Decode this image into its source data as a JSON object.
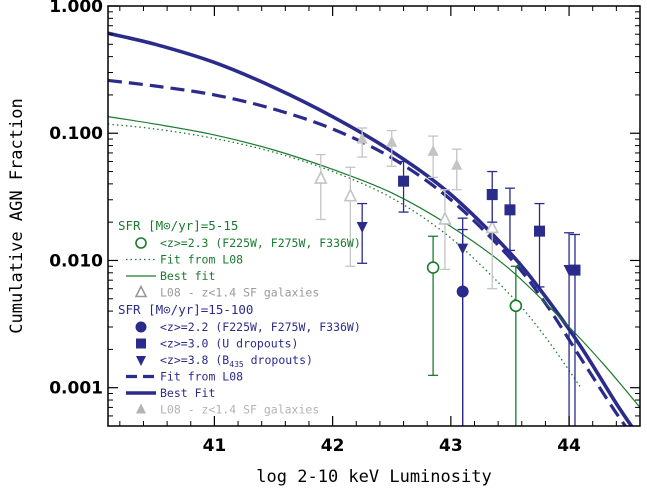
{
  "chart_data": {
    "type": "scatter",
    "xlabel": "log 2-10 keV Luminosity",
    "ylabel": "Cumulative AGN Fraction",
    "xlim": [
      40.1,
      44.6
    ],
    "ylim": [
      0.0005,
      1.0
    ],
    "yscale": "log",
    "x_ticks": [
      41,
      42,
      43,
      44
    ],
    "x_tick_labels": [
      "41",
      "42",
      "43",
      "44"
    ],
    "y_ticks": [
      0.001,
      0.01,
      0.1,
      1.0
    ],
    "y_tick_labels": [
      "0.001",
      "0.010",
      "0.100",
      "1.000"
    ],
    "colors": {
      "green": "#1a7a2e",
      "blue": "#2b2b8c",
      "gray": "#c4c4c4"
    },
    "legend_groups": [
      {
        "header": "SFR [M⊙/yr]=5-15",
        "color": "#1a7a2e",
        "entries": [
          {
            "marker": "open-circle",
            "color": "#1a7a2e",
            "label": "<z>=2.3 (F225W, F275W, F336W)"
          },
          {
            "marker": "dotted-line",
            "color": "#1a7a2e",
            "label": "Fit from L08"
          },
          {
            "marker": "thin-line",
            "color": "#1a7a2e",
            "label": "Best fit"
          },
          {
            "marker": "open-triangle",
            "color": "#9a9a9a",
            "label": "L08 - z<1.4 SF galaxies"
          }
        ]
      },
      {
        "header": "SFR [M⊙/yr]=15-100",
        "color": "#2b2b8c",
        "entries": [
          {
            "marker": "filled-circle",
            "color": "#2b2b8c",
            "label": "<z>=2.2 (F225W, F275W, F336W)"
          },
          {
            "marker": "filled-square",
            "color": "#2b2b8c",
            "label": "<z>=3.0 (U dropouts)"
          },
          {
            "marker": "filled-triangle-down",
            "color": "#2b2b8c",
            "label_pre": "<z>=3.8 (B",
            "label_sub": "435",
            "label_post": " dropouts)"
          },
          {
            "marker": "dashed-line",
            "color": "#2b2b8c",
            "label": "Fit from L08"
          },
          {
            "marker": "thick-line",
            "color": "#2b2b8c",
            "label": "Best Fit"
          },
          {
            "marker": "filled-triangle",
            "color": "#b4b4b4",
            "label": "L08 - z<1.4 SF galaxies"
          }
        ]
      }
    ],
    "series": [
      {
        "name": "<z>=2.3 (F225W, F275W, F336W)",
        "marker": "open-circle",
        "color": "#1a7a2e",
        "points": [
          {
            "x": 42.85,
            "y": 0.0088,
            "ylo": 0.00125,
            "yhi": 0.0155
          },
          {
            "x": 43.55,
            "y": 0.0044,
            "ylo": 0.0003,
            "yhi": 0.009
          }
        ]
      },
      {
        "name": "L08 - z<1.4 SF galaxies (open)",
        "marker": "open-triangle",
        "color": "#c4c4c4",
        "points": [
          {
            "x": 41.9,
            "y": 0.044,
            "ylo": 0.021,
            "yhi": 0.068
          },
          {
            "x": 42.15,
            "y": 0.032,
            "ylo": 0.009,
            "yhi": 0.054
          },
          {
            "x": 42.95,
            "y": 0.021,
            "ylo": 0.0085,
            "yhi": 0.036
          },
          {
            "x": 43.35,
            "y": 0.018,
            "ylo": 0.006,
            "yhi": 0.03
          }
        ]
      },
      {
        "name": "L08 - z<1.4 SF galaxies (filled)",
        "marker": "filled-triangle",
        "color": "#c4c4c4",
        "points": [
          {
            "x": 42.25,
            "y": 0.09,
            "ylo": 0.065,
            "yhi": 0.11
          },
          {
            "x": 42.5,
            "y": 0.085,
            "ylo": 0.055,
            "yhi": 0.105
          },
          {
            "x": 42.85,
            "y": 0.072,
            "ylo": 0.045,
            "yhi": 0.095
          },
          {
            "x": 43.05,
            "y": 0.056,
            "ylo": 0.036,
            "yhi": 0.075
          }
        ]
      },
      {
        "name": "<z>=2.2 (F225W, F275W, F336W)",
        "marker": "filled-circle",
        "color": "#2b2b8c",
        "points": [
          {
            "x": 43.1,
            "y": 0.0057,
            "ylo": 0.00048,
            "yhi": 0.0175
          }
        ]
      },
      {
        "name": "<z>=3.0 (U dropouts)",
        "marker": "filled-square",
        "color": "#2b2b8c",
        "points": [
          {
            "x": 42.6,
            "y": 0.042,
            "ylo": 0.024,
            "yhi": 0.06
          },
          {
            "x": 43.35,
            "y": 0.033,
            "ylo": 0.02,
            "yhi": 0.05
          },
          {
            "x": 43.5,
            "y": 0.025,
            "ylo": 0.012,
            "yhi": 0.037
          },
          {
            "x": 43.75,
            "y": 0.017,
            "ylo": 0.0062,
            "yhi": 0.028
          },
          {
            "x": 44.05,
            "y": 0.0084,
            "ylo": 0.00048,
            "yhi": 0.016
          }
        ]
      },
      {
        "name": "<z>=3.8 (B435 dropouts)",
        "marker": "filled-triangle-down",
        "color": "#2b2b8c",
        "points": [
          {
            "x": 42.25,
            "y": 0.0185,
            "ylo": 0.0095,
            "yhi": 0.028
          },
          {
            "x": 43.1,
            "y": 0.0125,
            "ylo": 0.00048,
            "yhi": 0.0215
          },
          {
            "x": 44.0,
            "y": 0.0085,
            "ylo": 0.00048,
            "yhi": 0.0165
          }
        ]
      }
    ],
    "curves": [
      {
        "name": "Best Fit",
        "style": "thick-solid",
        "color": "#2b2b8c",
        "x": [
          40.1,
          40.5,
          41.0,
          41.5,
          42.0,
          42.5,
          43.0,
          43.5,
          43.8,
          44.1,
          44.4,
          44.6
        ],
        "y": [
          0.61,
          0.5,
          0.36,
          0.23,
          0.135,
          0.072,
          0.033,
          0.0115,
          0.0052,
          0.0021,
          0.00075,
          0.0004
        ]
      },
      {
        "name": "Fit from L08 (dashed)",
        "style": "dashed",
        "color": "#2b2b8c",
        "x": [
          40.1,
          40.5,
          41.0,
          41.5,
          42.0,
          42.5,
          43.0,
          43.5,
          43.8,
          44.1,
          44.4,
          44.6
        ],
        "y": [
          0.26,
          0.235,
          0.2,
          0.155,
          0.108,
          0.064,
          0.03,
          0.0105,
          0.0046,
          0.0017,
          0.00063,
          0.00035
        ]
      },
      {
        "name": "Best fit (green thin)",
        "style": "thin-solid",
        "color": "#1a7a2e",
        "x": [
          40.1,
          40.5,
          41.0,
          41.5,
          42.0,
          42.5,
          43.0,
          43.5,
          44.0,
          44.3,
          44.6
        ],
        "y": [
          0.135,
          0.118,
          0.097,
          0.074,
          0.052,
          0.034,
          0.0185,
          0.0085,
          0.003,
          0.0015,
          0.0007
        ]
      },
      {
        "name": "Fit from L08 (green dotted)",
        "style": "dotted",
        "color": "#1a7a2e",
        "x": [
          40.1,
          40.5,
          41.0,
          41.5,
          42.0,
          42.5,
          43.0,
          43.5,
          43.8,
          44.1
        ],
        "y": [
          0.118,
          0.108,
          0.091,
          0.071,
          0.05,
          0.031,
          0.015,
          0.0054,
          0.0025,
          0.001
        ]
      }
    ]
  }
}
